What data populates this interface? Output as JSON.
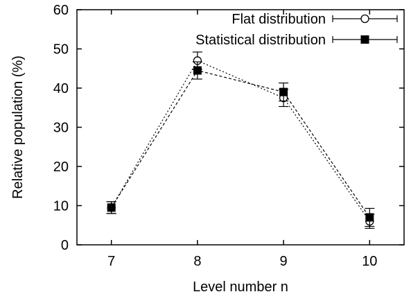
{
  "chart_data": {
    "type": "line",
    "title": "",
    "xlabel": "Level number n",
    "ylabel": "Relative population (%)",
    "x": [
      7,
      8,
      9,
      10
    ],
    "xlim": [
      6.6,
      10.4
    ],
    "ylim": [
      0,
      60
    ],
    "xticks": [
      "7",
      "8",
      "9",
      "10"
    ],
    "yticks": [
      "0",
      "10",
      "20",
      "30",
      "40",
      "50",
      "60"
    ],
    "grid": false,
    "legend_position": "top-right",
    "series": [
      {
        "name": "Flat distribution",
        "marker": "open-circle",
        "line_style": "dotted",
        "color": "#000000",
        "values": [
          9.5,
          47.0,
          37.5,
          6.0
        ],
        "errors": [
          1.5,
          2.2,
          2.2,
          1.8
        ]
      },
      {
        "name": "Statistical distribution",
        "marker": "filled-square",
        "line_style": "dashed",
        "color": "#000000",
        "values": [
          9.5,
          44.5,
          39.0,
          7.0
        ],
        "errors": [
          1.5,
          2.2,
          2.3,
          2.3
        ]
      }
    ]
  }
}
